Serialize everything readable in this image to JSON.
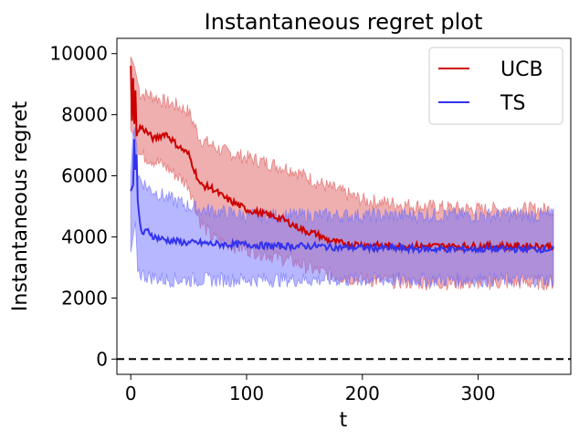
{
  "chart_data": {
    "type": "line",
    "title": "Instantaneous regret plot",
    "xlabel": "t",
    "ylabel": "Instantaneous regret",
    "xlim": [
      -12,
      380
    ],
    "ylim": [
      -500,
      10500
    ],
    "xticks": [
      0,
      100,
      200,
      300
    ],
    "yticks": [
      0,
      2000,
      4000,
      6000,
      8000,
      10000
    ],
    "x_end": 365,
    "reference_line": {
      "y": 0,
      "style": "dashed",
      "color": "#000000"
    },
    "legend": {
      "position": "top-right",
      "entries": [
        "UCB",
        "TS"
      ]
    },
    "series": [
      {
        "name": "UCB",
        "color": "#cc0000",
        "band_color": "#e06060",
        "mean": {
          "x": [
            0,
            1,
            2,
            3,
            4,
            5,
            8,
            12,
            20,
            30,
            40,
            50,
            55,
            60,
            70,
            80,
            90,
            100,
            110,
            120,
            130,
            140,
            150,
            160,
            170,
            180,
            200,
            220,
            250,
            280,
            300,
            330,
            365
          ],
          "y": [
            9600,
            7800,
            9200,
            7700,
            8800,
            7300,
            7600,
            7500,
            7200,
            7400,
            7000,
            6700,
            6200,
            5700,
            5600,
            5300,
            5100,
            4900,
            4800,
            4700,
            4600,
            4400,
            4200,
            4100,
            3900,
            3800,
            3750,
            3700,
            3700,
            3700,
            3700,
            3700,
            3700
          ]
        },
        "upper": {
          "x": [
            0,
            3,
            8,
            20,
            30,
            40,
            50,
            60,
            70,
            80,
            100,
            120,
            140,
            160,
            180,
            200,
            250,
            300,
            365
          ],
          "y": [
            9900,
            9600,
            8700,
            8600,
            8400,
            8300,
            8100,
            7200,
            7000,
            6800,
            6600,
            6400,
            6200,
            5800,
            5500,
            5200,
            5000,
            4900,
            4900
          ]
        },
        "lower": {
          "x": [
            0,
            3,
            8,
            20,
            30,
            40,
            50,
            60,
            70,
            80,
            100,
            120,
            140,
            160,
            180,
            200,
            250,
            300,
            365
          ],
          "y": [
            7500,
            7300,
            6700,
            6500,
            6300,
            6000,
            5700,
            4500,
            4000,
            3800,
            3600,
            3400,
            3200,
            2900,
            2700,
            2600,
            2500,
            2500,
            2500
          ]
        }
      },
      {
        "name": "TS",
        "color": "#3333ee",
        "band_color": "#7070ff",
        "mean": {
          "x": [
            0,
            2,
            3,
            4,
            5,
            6,
            8,
            10,
            15,
            20,
            30,
            50,
            60,
            80,
            100,
            120,
            140,
            160,
            180,
            200,
            250,
            300,
            365
          ],
          "y": [
            5500,
            5700,
            7200,
            6200,
            6700,
            5100,
            4400,
            4100,
            4200,
            4000,
            3900,
            3800,
            3800,
            3750,
            3750,
            3700,
            3700,
            3700,
            3650,
            3650,
            3600,
            3600,
            3600
          ]
        },
        "upper": {
          "x": [
            0,
            2,
            4,
            6,
            8,
            15,
            30,
            50,
            60,
            80,
            100,
            150,
            200,
            250,
            300,
            365
          ],
          "y": [
            6000,
            7400,
            7600,
            6000,
            5900,
            5600,
            5300,
            5000,
            4900,
            4800,
            4700,
            4700,
            4700,
            4700,
            4700,
            4700
          ]
        },
        "lower": {
          "x": [
            0,
            2,
            4,
            6,
            8,
            15,
            30,
            50,
            60,
            80,
            100,
            150,
            200,
            250,
            300,
            365
          ],
          "y": [
            3500,
            4000,
            4500,
            3000,
            2800,
            2700,
            2600,
            2600,
            2600,
            2600,
            2600,
            2600,
            2600,
            2600,
            2600,
            2600
          ]
        }
      }
    ]
  }
}
